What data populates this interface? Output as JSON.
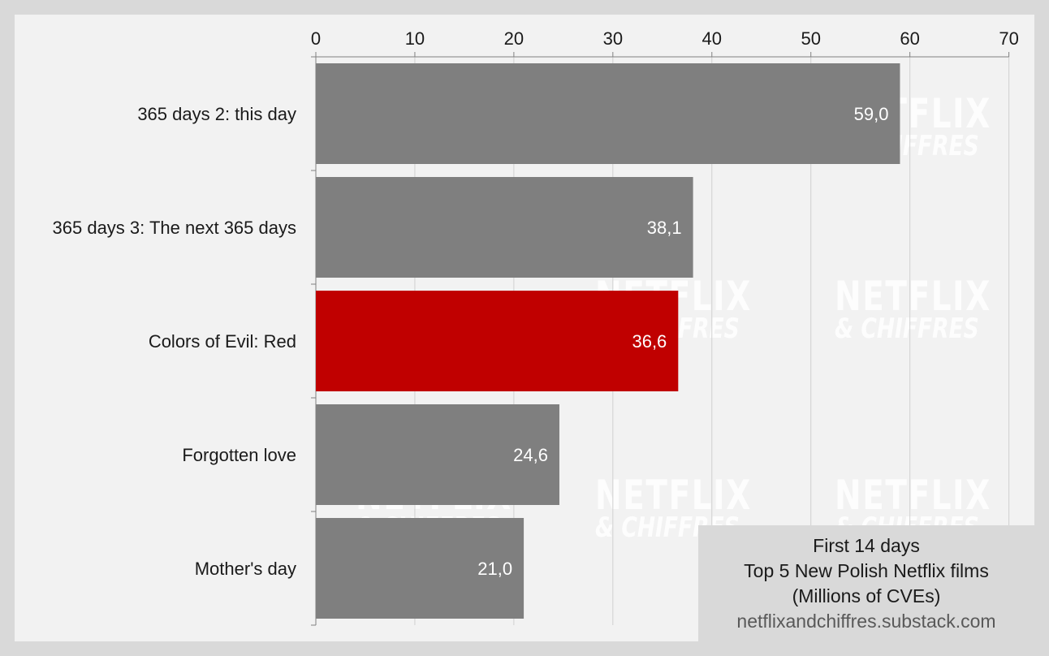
{
  "chart_data": {
    "type": "bar",
    "orientation": "horizontal",
    "categories": [
      "365 days 2: this day",
      "365 days 3: The next 365 days",
      "Colors of Evil: Red",
      "Forgotten love",
      "Mother's day"
    ],
    "values": [
      59.0,
      38.1,
      36.6,
      24.6,
      21.0
    ],
    "value_labels": [
      "59,0",
      "38,1",
      "36,6",
      "24,6",
      "21,0"
    ],
    "highlight_index": 2,
    "x_ticks": [
      0,
      10,
      20,
      30,
      40,
      50,
      60,
      70
    ],
    "xlim": [
      0,
      70
    ],
    "x_axis_position": "top",
    "grid": true,
    "colors": {
      "bar": "#7f7f7f",
      "highlight": "#c00000",
      "grid": "#d0d0d0",
      "background": "#f2f2f2",
      "frame": "#d9d9d9"
    }
  },
  "info_box": {
    "line1": "First 14 days",
    "line2": "Top 5 New Polish Netflix films",
    "line3": "(Millions of CVEs)",
    "source": "netflixandchiffres.substack.com"
  },
  "watermark": {
    "line1": "NETFLIX",
    "line2": "& CHIFFRES"
  }
}
